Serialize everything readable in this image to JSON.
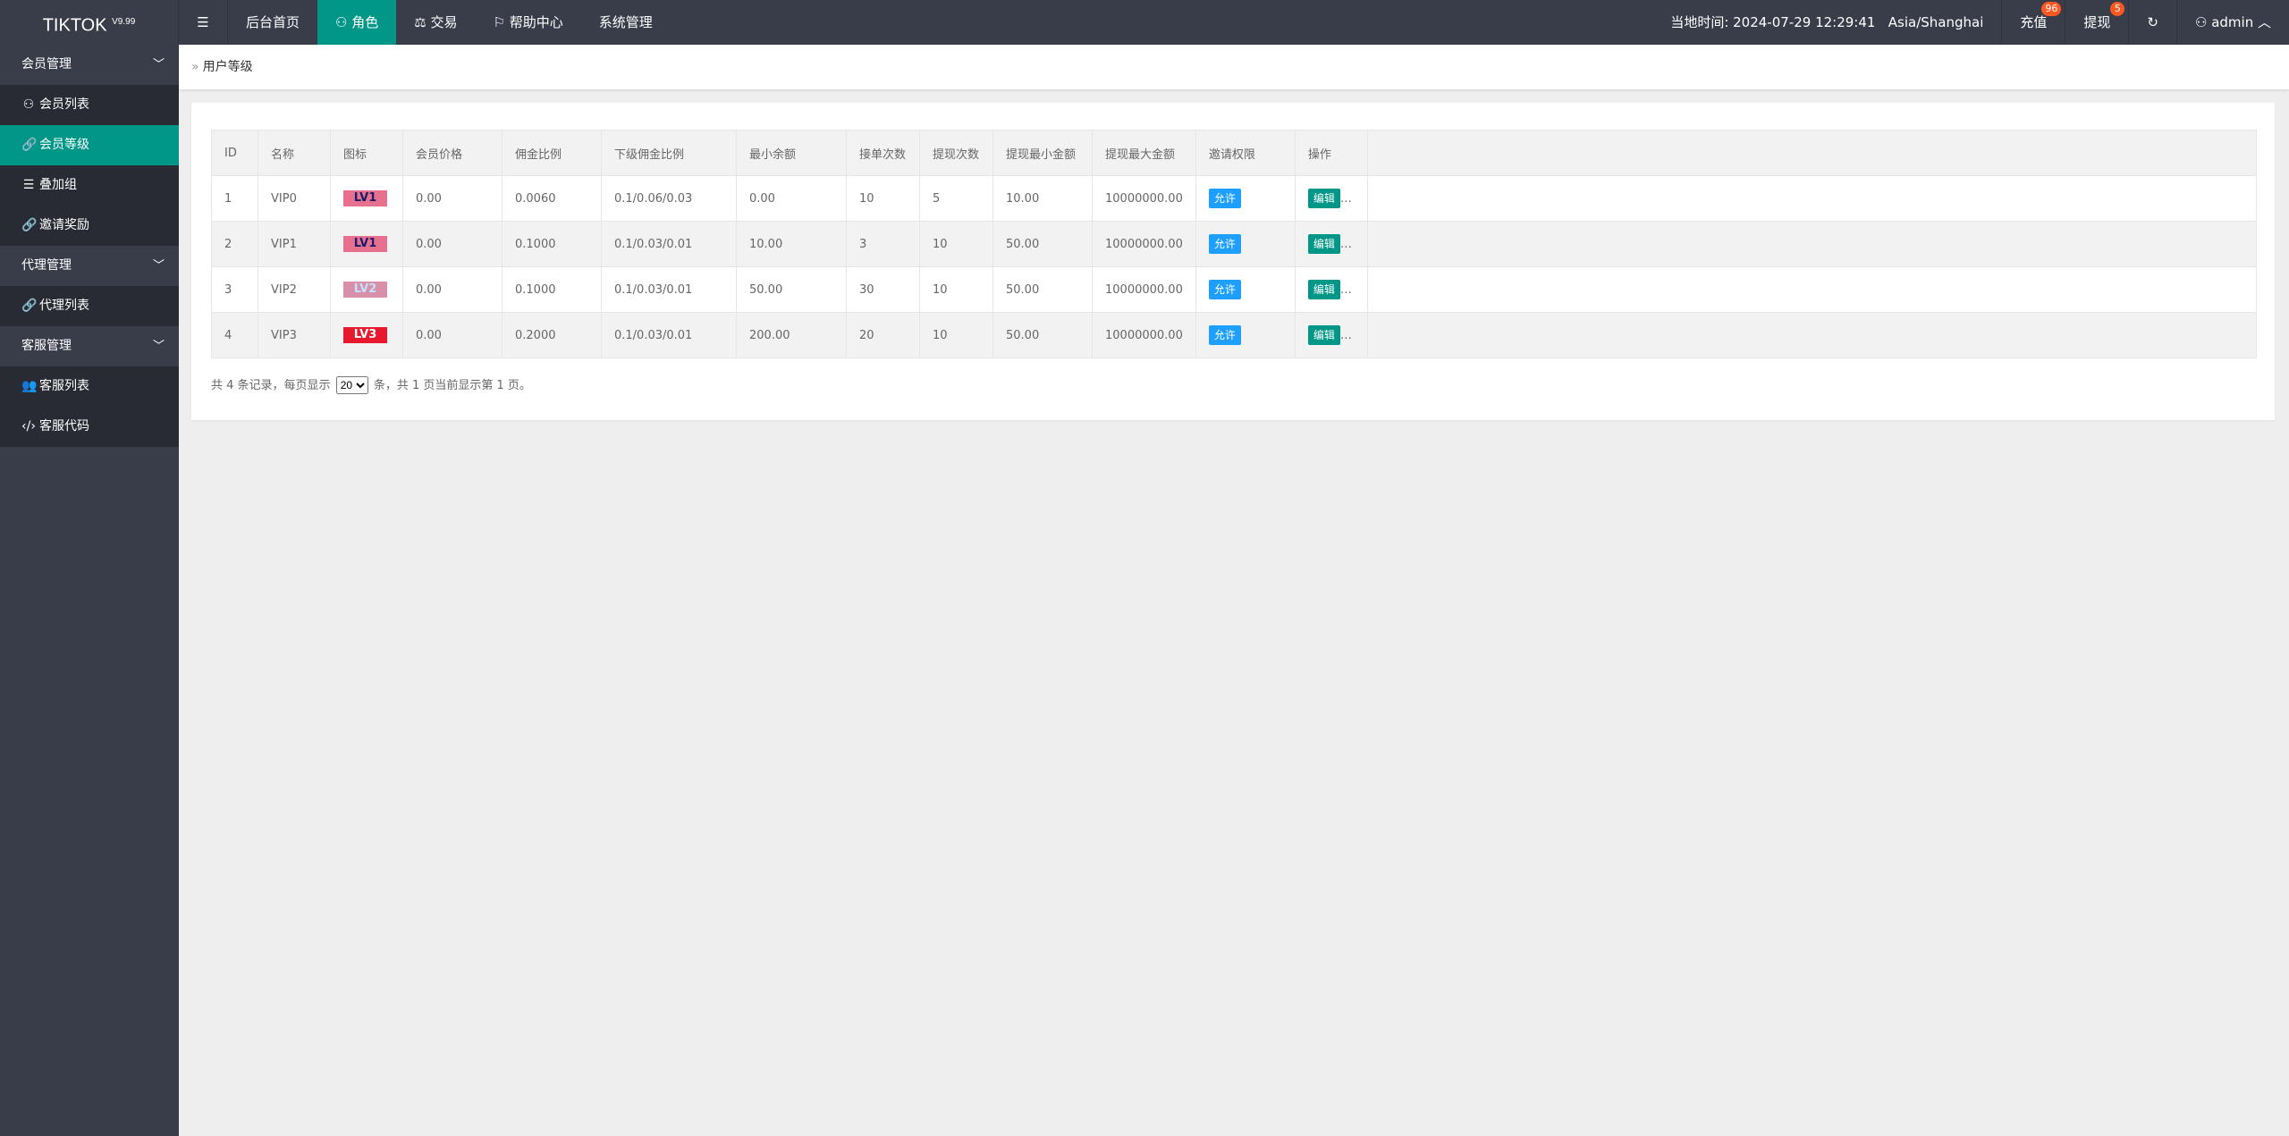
{
  "header": {
    "logo": "TIKTOK",
    "version": "V9.99",
    "menu_icon": "hamburger-icon",
    "nav": [
      {
        "label": "后台首页",
        "icon": ""
      },
      {
        "label": "角色",
        "icon": "user-icon",
        "active": true
      },
      {
        "label": "交易",
        "icon": "scale-icon"
      },
      {
        "label": "帮助中心",
        "icon": "flag-icon"
      },
      {
        "label": "系统管理",
        "icon": ""
      }
    ],
    "time": "当地时间: 2024-07-29 12:29:41",
    "timezone": "Asia/Shanghai",
    "recharge": "充值",
    "recharge_badge": "96",
    "withdraw": "提现",
    "withdraw_badge": "5",
    "refresh_icon": "refresh-icon",
    "user": "admin"
  },
  "sidebar": [
    {
      "label": "会员管理",
      "type": "head"
    },
    {
      "label": "会员列表",
      "icon": "user-icon"
    },
    {
      "label": "会员等级",
      "icon": "link-icon",
      "active": true
    },
    {
      "label": "叠加组",
      "icon": "list-icon"
    },
    {
      "label": "邀请奖励",
      "icon": "link-icon"
    },
    {
      "label": "代理管理",
      "type": "head"
    },
    {
      "label": "代理列表",
      "icon": "link-icon"
    },
    {
      "label": "客服管理",
      "type": "head"
    },
    {
      "label": "客服列表",
      "icon": "users-icon"
    },
    {
      "label": "客服代码",
      "icon": "code-icon"
    }
  ],
  "breadcrumb": "用户等级",
  "table": {
    "headers": [
      "ID",
      "名称",
      "图标",
      "会员价格",
      "佣金比例",
      "下级佣金比例",
      "最小余额",
      "接单次数",
      "提现次数",
      "提现最小金额",
      "提现最大金额",
      "邀请权限",
      "操作"
    ],
    "rows": [
      [
        "1",
        "VIP0",
        "LV1",
        "0.00",
        "0.0060",
        "0.1/0.06/0.03",
        "0.00",
        "10",
        "5",
        "10.00",
        "10000000.00",
        "允许",
        "编辑"
      ],
      [
        "2",
        "VIP1",
        "LV1",
        "0.00",
        "0.1000",
        "0.1/0.03/0.01",
        "10.00",
        "3",
        "10",
        "50.00",
        "10000000.00",
        "允许",
        "编辑"
      ],
      [
        "3",
        "VIP2",
        "LV2",
        "0.00",
        "0.1000",
        "0.1/0.03/0.01",
        "50.00",
        "30",
        "10",
        "50.00",
        "10000000.00",
        "允许",
        "编辑"
      ],
      [
        "4",
        "VIP3",
        "LV3",
        "0.00",
        "0.2000",
        "0.1/0.03/0.01",
        "200.00",
        "20",
        "10",
        "50.00",
        "10000000.00",
        "允许",
        "编辑"
      ]
    ]
  },
  "pager": {
    "prefix": "共 4 条记录，每页显示",
    "per_page": "20",
    "suffix": "条，共 1 页当前显示第 1 页。"
  },
  "colors": {
    "topbar": "#393d49",
    "accent": "#009688",
    "allow": "#1e9fff"
  }
}
